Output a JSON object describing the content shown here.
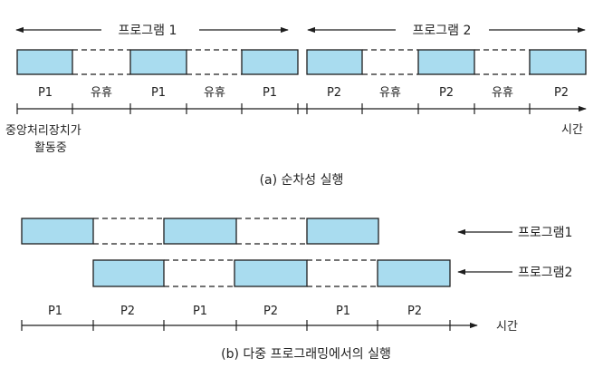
{
  "colors": {
    "block_fill": "#a9dcef",
    "block_stroke": "#1e1e1e",
    "line": "#1e1e1e"
  },
  "part_a": {
    "left_program_label": "프로그램 1",
    "right_program_label": "프로그램 2",
    "segments": [
      "P1",
      "유휴",
      "P1",
      "유휴",
      "P1",
      "P2",
      "유휴",
      "P2",
      "유휴",
      "P2"
    ],
    "cpu_label_line1": "중앙처리장치가",
    "cpu_label_line2": "활동중",
    "time_label": "시간",
    "caption": "(a) 순차성 실행"
  },
  "part_b": {
    "program1_label": "프로그램1",
    "program2_label": "프로그램2",
    "segments": [
      "P1",
      "P2",
      "P1",
      "P2",
      "P1",
      "P2"
    ],
    "time_label": "시간",
    "caption": "(b) 다중 프로그래밍에서의 실행"
  }
}
